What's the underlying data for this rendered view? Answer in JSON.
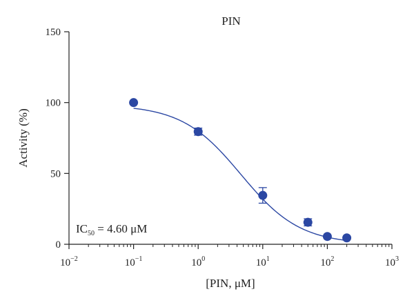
{
  "chart_data": {
    "type": "scatter",
    "title": "PIN",
    "xlabel": "[PIN, μM]",
    "ylabel": "Activity (%)",
    "x_scale": "log",
    "xlim": [
      0.01,
      1000
    ],
    "ylim": [
      0,
      150
    ],
    "x_ticks": [
      {
        "value": 0.01,
        "base": "10",
        "exp": "−2"
      },
      {
        "value": 0.1,
        "base": "10",
        "exp": "−1"
      },
      {
        "value": 1,
        "base": "10",
        "exp": "0"
      },
      {
        "value": 10,
        "base": "10",
        "exp": "1"
      },
      {
        "value": 100,
        "base": "10",
        "exp": "2"
      },
      {
        "value": 1000,
        "base": "10",
        "exp": "3"
      }
    ],
    "y_ticks": [
      0,
      50,
      100,
      150
    ],
    "grid": false,
    "points": [
      {
        "x": 0.1,
        "y": 100,
        "err": 0.8
      },
      {
        "x": 1,
        "y": 79.5,
        "err": 2.5
      },
      {
        "x": 10,
        "y": 34.5,
        "err": 5.5
      },
      {
        "x": 50,
        "y": 15.5,
        "err": 2.5
      },
      {
        "x": 100,
        "y": 5.5,
        "err": 1.0
      },
      {
        "x": 200,
        "y": 4.5,
        "err": 0.8
      }
    ],
    "fit": {
      "type": "sigmoid",
      "top": 98.5,
      "bottom": 0,
      "ic50": 4.6,
      "hill": 0.95
    },
    "annotation": {
      "prefix": "IC",
      "subscript": "50",
      "value_text": " = 4.60 μM"
    },
    "colors": {
      "marker": "#2b47a3",
      "curve": "#2b47a3",
      "axis": "#222222"
    }
  }
}
